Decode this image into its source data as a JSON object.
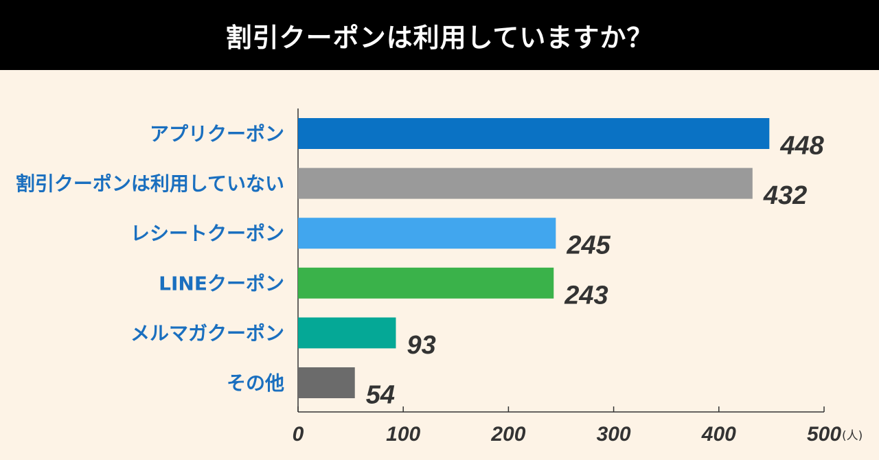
{
  "chart_data": {
    "type": "bar",
    "orientation": "horizontal",
    "title": "割引クーポンは利用していますか？",
    "categories": [
      "アプリクーポン",
      "割引クーポンは利用していない",
      "レシートクーポン",
      "LINEクーポン",
      "メルマガクーポン",
      "その他"
    ],
    "values": [
      448,
      432,
      245,
      243,
      93,
      54
    ],
    "value_labels": [
      "448",
      "432",
      "245",
      "243",
      "93",
      "54"
    ],
    "bar_colors": [
      "#0a72c4",
      "#9a9a9a",
      "#41a6ee",
      "#3ab24a",
      "#05a896",
      "#6b6b6b"
    ],
    "xlim": [
      0,
      500
    ],
    "xticks": [
      0,
      100,
      200,
      300,
      400,
      500
    ],
    "tick_labels": [
      "0",
      "100",
      "200",
      "300",
      "400",
      "500"
    ],
    "x_unit": "(人)",
    "grid": false,
    "category_label_color": "#1a6fbf",
    "background_color": "#fdf3e6",
    "header_color": "#000000"
  }
}
